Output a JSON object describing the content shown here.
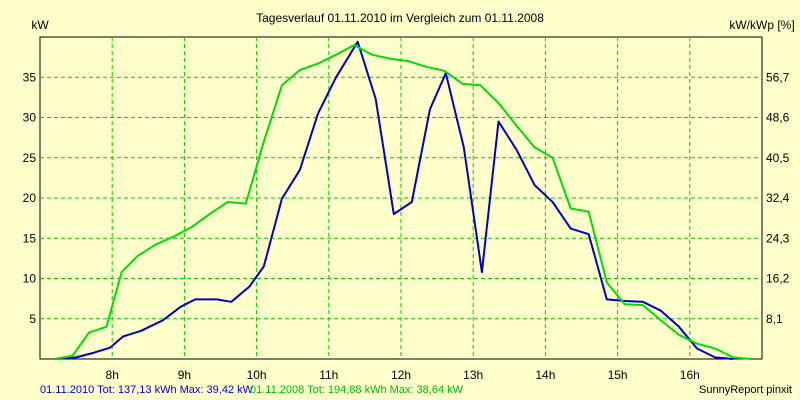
{
  "chart_data": {
    "type": "line",
    "title": "Tagesverlauf 01.11.2010 im Vergleich zum 01.11.2008",
    "ylabel_left": "kW",
    "ylabel_right": "kW/kWp [%]",
    "x_ticks": [
      {
        "t": 8,
        "label": "8h"
      },
      {
        "t": 9,
        "label": "9h"
      },
      {
        "t": 10,
        "label": "10h"
      },
      {
        "t": 11,
        "label": "11h"
      },
      {
        "t": 12,
        "label": "12h"
      },
      {
        "t": 13,
        "label": "13h"
      },
      {
        "t": 14,
        "label": "14h"
      },
      {
        "t": 15,
        "label": "15h"
      },
      {
        "t": 16,
        "label": "16h"
      }
    ],
    "xlim": [
      7,
      17
    ],
    "ylim": [
      0,
      40
    ],
    "y_ticks_left": [
      5,
      10,
      15,
      20,
      25,
      30,
      35
    ],
    "y_ticks_right": [
      {
        "v": 5,
        "label": "8,1"
      },
      {
        "v": 10,
        "label": "16,2"
      },
      {
        "v": 15,
        "label": "24,3"
      },
      {
        "v": 20,
        "label": "32,4"
      },
      {
        "v": 25,
        "label": "40,5"
      },
      {
        "v": 30,
        "label": "48,6"
      },
      {
        "v": 35,
        "label": "56,7"
      }
    ],
    "grid": true,
    "grid_color": "#00cc00",
    "background_color": "#ffffcc",
    "series": [
      {
        "color": "#0000cc",
        "points": [
          [
            7.2,
            0
          ],
          [
            7.5,
            0.2
          ],
          [
            7.75,
            0.8
          ],
          [
            7.97,
            1.4
          ],
          [
            8.15,
            2.8
          ],
          [
            8.4,
            3.5
          ],
          [
            8.7,
            4.8
          ],
          [
            8.95,
            6.5
          ],
          [
            9.15,
            7.4
          ],
          [
            9.45,
            7.4
          ],
          [
            9.65,
            7.1
          ],
          [
            9.9,
            9
          ],
          [
            10.1,
            11.5
          ],
          [
            10.35,
            19.9
          ],
          [
            10.6,
            23.5
          ],
          [
            10.85,
            30.5
          ],
          [
            11.1,
            35
          ],
          [
            11.4,
            39.4
          ],
          [
            11.65,
            32.3
          ],
          [
            11.9,
            18
          ],
          [
            12.15,
            19.5
          ],
          [
            12.4,
            31
          ],
          [
            12.62,
            35.5
          ],
          [
            12.87,
            26.3
          ],
          [
            13.12,
            10.8
          ],
          [
            13.35,
            29.5
          ],
          [
            13.6,
            26
          ],
          [
            13.85,
            21.6
          ],
          [
            14.1,
            19.5
          ],
          [
            14.35,
            16.2
          ],
          [
            14.6,
            15.5
          ],
          [
            14.85,
            7.4
          ],
          [
            15.1,
            7.2
          ],
          [
            15.35,
            7.1
          ],
          [
            15.6,
            6
          ],
          [
            15.85,
            4
          ],
          [
            16.1,
            1.3
          ],
          [
            16.35,
            0.2
          ],
          [
            16.6,
            0
          ]
        ]
      },
      {
        "color": "#00dd00",
        "points": [
          [
            7.2,
            0
          ],
          [
            7.45,
            0.4
          ],
          [
            7.68,
            3.3
          ],
          [
            7.92,
            4
          ],
          [
            8.13,
            10.8
          ],
          [
            8.35,
            12.8
          ],
          [
            8.6,
            14.2
          ],
          [
            8.85,
            15.2
          ],
          [
            9.1,
            16.4
          ],
          [
            9.35,
            18
          ],
          [
            9.6,
            19.5
          ],
          [
            9.85,
            19.3
          ],
          [
            10.1,
            27
          ],
          [
            10.35,
            34
          ],
          [
            10.6,
            35.9
          ],
          [
            10.85,
            36.7
          ],
          [
            11.1,
            37.8
          ],
          [
            11.35,
            39
          ],
          [
            11.6,
            37.8
          ],
          [
            11.85,
            37.3
          ],
          [
            12.1,
            37
          ],
          [
            12.35,
            36.3
          ],
          [
            12.6,
            35.8
          ],
          [
            12.85,
            34.2
          ],
          [
            13.1,
            34
          ],
          [
            13.35,
            31.8
          ],
          [
            13.6,
            29
          ],
          [
            13.85,
            26.3
          ],
          [
            14.1,
            25
          ],
          [
            14.35,
            18.7
          ],
          [
            14.6,
            18.3
          ],
          [
            14.85,
            9.5
          ],
          [
            15.1,
            6.8
          ],
          [
            15.35,
            6.7
          ],
          [
            15.6,
            4.8
          ],
          [
            15.85,
            3
          ],
          [
            16.1,
            1.9
          ],
          [
            16.35,
            1.3
          ],
          [
            16.6,
            0.2
          ],
          [
            16.85,
            0
          ]
        ]
      }
    ]
  },
  "footer": {
    "series1_text": "01.11.2010 Tot: 137,13 kWh Max: 39,42 kW",
    "series2_text": "01.11.2008 Tot: 194,88 kWh Max: 38,64 kW",
    "credit": "SunnyReport pinxit",
    "series1_color": "#0000cc",
    "series2_color": "#00bb00"
  }
}
